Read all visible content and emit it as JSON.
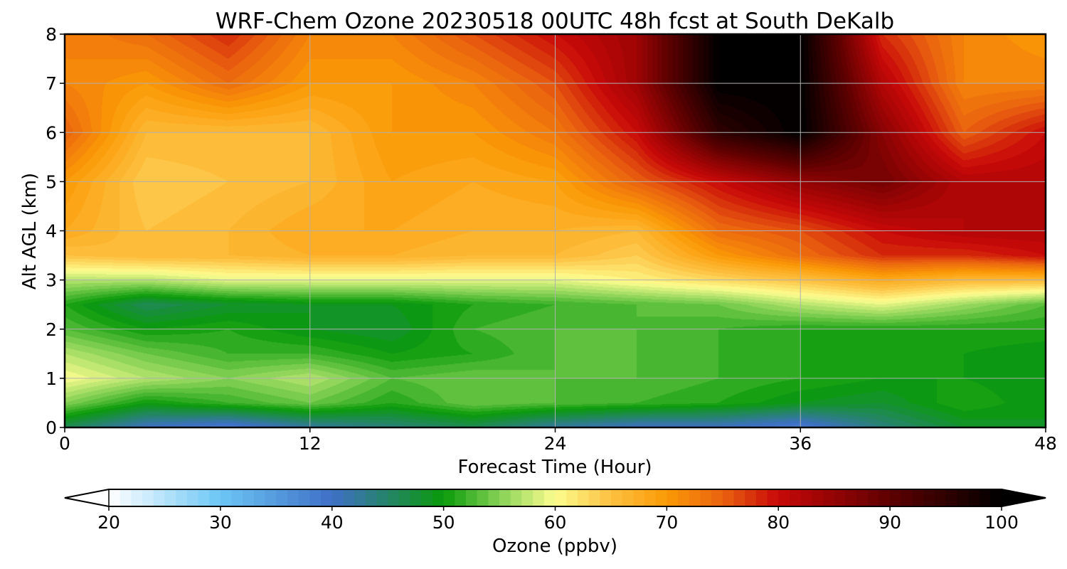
{
  "chart_data": {
    "type": "heatmap",
    "title": "WRF-Chem Ozone  20230518 00UTC 48h fcst at South DeKalb",
    "xlabel": "Forecast Time (Hour)",
    "ylabel": "Alt AGL (km)",
    "xlim": [
      0,
      48
    ],
    "ylim": [
      0,
      8
    ],
    "x_ticks": [
      "0",
      "12",
      "24",
      "36",
      "48"
    ],
    "y_ticks": [
      "0",
      "1",
      "2",
      "3",
      "4",
      "5",
      "6",
      "7",
      "8"
    ],
    "grid": true,
    "field": {
      "x": [
        0,
        4,
        8,
        12,
        16,
        20,
        24,
        28,
        32,
        36,
        40,
        44,
        48
      ],
      "y": [
        0,
        0.5,
        1,
        1.5,
        2,
        2.5,
        3,
        3.5,
        4,
        5,
        6,
        7,
        8
      ],
      "z": [
        [
          46,
          40,
          38,
          42,
          44,
          46,
          42,
          40,
          40,
          38,
          44,
          48,
          49
        ],
        [
          55,
          50,
          52,
          54,
          51,
          54,
          53,
          52,
          51,
          49,
          48,
          51,
          49
        ],
        [
          60,
          57,
          55,
          57,
          53,
          54,
          53,
          53,
          52,
          51,
          50,
          50,
          49
        ],
        [
          57,
          54,
          52,
          52,
          50,
          51,
          53,
          53,
          52,
          51,
          50,
          50,
          49
        ],
        [
          53,
          50,
          51,
          49,
          48,
          52,
          53,
          53,
          52,
          51,
          51,
          51,
          51
        ],
        [
          51,
          46,
          48,
          49,
          49,
          51,
          52,
          53,
          54,
          57,
          59,
          56,
          53
        ],
        [
          57,
          57,
          59,
          59,
          59,
          59,
          59,
          61,
          63,
          65,
          68,
          66,
          66
        ],
        [
          65,
          66,
          66,
          67,
          67,
          66,
          66,
          64,
          70,
          74,
          78,
          78,
          80
        ],
        [
          68,
          65,
          66,
          68,
          68,
          67,
          67,
          66,
          74,
          76,
          80,
          82,
          82
        ],
        [
          70,
          64,
          65,
          66,
          69,
          68,
          69,
          75,
          80,
          85,
          88,
          82,
          82
        ],
        [
          75,
          66,
          66,
          66,
          70,
          70,
          73,
          80,
          95,
          100,
          86,
          75,
          80
        ],
        [
          72,
          70,
          74,
          70,
          70,
          72,
          76,
          84,
          100,
          100,
          82,
          72,
          72
        ],
        [
          72,
          74,
          78,
          72,
          72,
          76,
          80,
          84,
          100,
          100,
          78,
          72,
          70
        ]
      ]
    },
    "colorbar": {
      "label": "Ozone  (ppbv)",
      "min": 20,
      "max": 100,
      "extend": "both",
      "ticks": [
        "20",
        "30",
        "40",
        "50",
        "60",
        "70",
        "80",
        "90",
        "100"
      ],
      "stops": [
        {
          "value": 20,
          "color": "#ffffff"
        },
        {
          "value": 30,
          "color": "#6cc6f5"
        },
        {
          "value": 40,
          "color": "#3f6fc6"
        },
        {
          "value": 50,
          "color": "#0a9a0a"
        },
        {
          "value": 55,
          "color": "#85d255"
        },
        {
          "value": 60,
          "color": "#fdfd90"
        },
        {
          "value": 65,
          "color": "#fdc040"
        },
        {
          "value": 70,
          "color": "#fb9a06"
        },
        {
          "value": 75,
          "color": "#ea6210"
        },
        {
          "value": 80,
          "color": "#c80808"
        },
        {
          "value": 90,
          "color": "#5e0000"
        },
        {
          "value": 100,
          "color": "#000000"
        }
      ]
    }
  }
}
